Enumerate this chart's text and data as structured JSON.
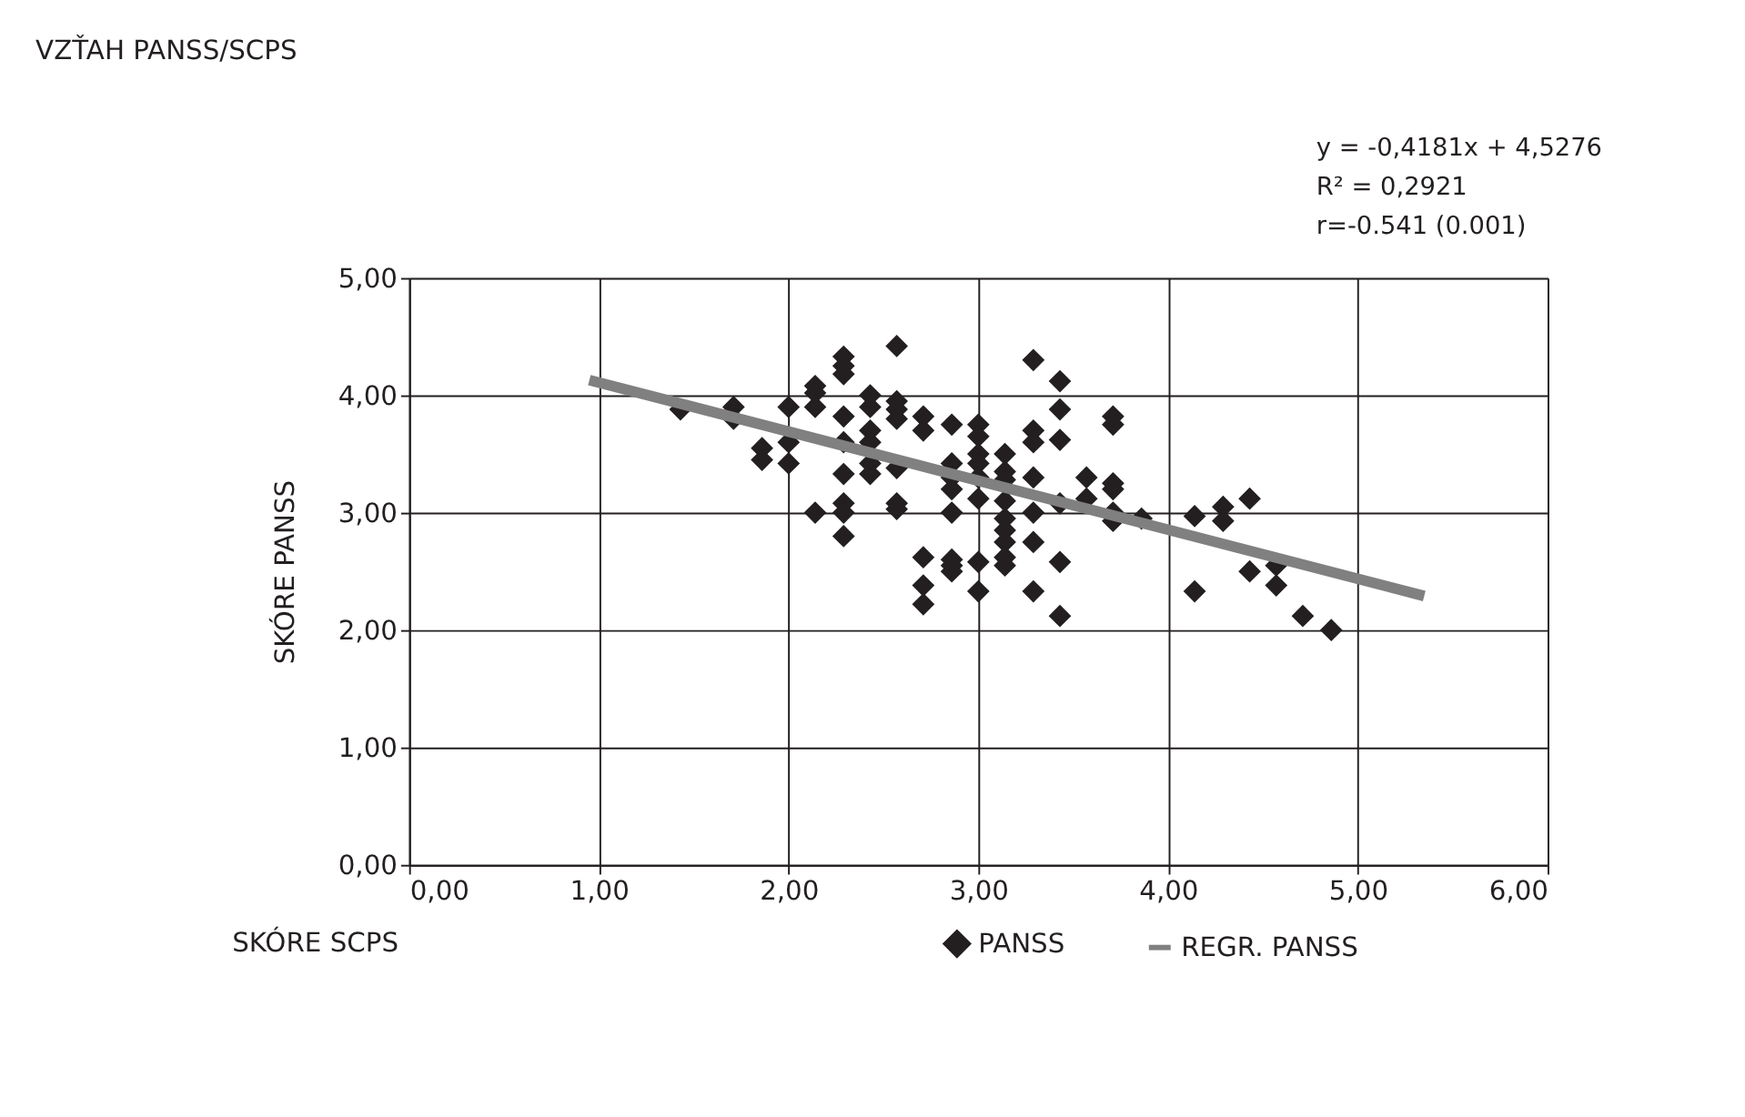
{
  "chart_data": {
    "type": "scatter",
    "title": "VZŤAH PANSS/SCPS",
    "xlabel": "SKÓRE SCPS",
    "ylabel": "SKÓRE PANSS",
    "annotations": [
      "y = -0,4181x + 4,5276",
      "R² = 0,2921",
      "r=-0.541 (0.001)"
    ],
    "series": [
      {
        "name": "PANSS",
        "type": "scatter",
        "color": "#231f20",
        "marker": "diamond",
        "x": [
          1.43,
          1.71,
          1.71,
          1.86,
          1.86,
          2.0,
          2.0,
          2.0,
          2.14,
          2.14,
          2.14,
          2.14,
          2.29,
          2.29,
          2.29,
          2.29,
          2.29,
          2.29,
          2.29,
          2.29,
          2.29,
          2.43,
          2.43,
          2.43,
          2.43,
          2.43,
          2.43,
          2.57,
          2.57,
          2.57,
          2.57,
          2.57,
          2.57,
          2.57,
          2.71,
          2.71,
          2.71,
          2.71,
          2.71,
          2.86,
          2.86,
          2.86,
          2.86,
          2.86,
          2.86,
          2.86,
          2.86,
          3.0,
          3.0,
          3.0,
          3.0,
          3.0,
          3.0,
          3.0,
          3.0,
          3.14,
          3.14,
          3.14,
          3.14,
          3.14,
          3.14,
          3.14,
          3.14,
          3.14,
          3.29,
          3.29,
          3.29,
          3.29,
          3.29,
          3.29,
          3.29,
          3.43,
          3.43,
          3.43,
          3.43,
          3.43,
          3.43,
          3.57,
          3.57,
          3.71,
          3.71,
          3.71,
          3.71,
          3.71,
          3.71,
          3.86,
          4.14,
          4.14,
          4.29,
          4.29,
          4.43,
          4.43,
          4.57,
          4.57,
          4.71,
          4.86
        ],
        "values": [
          3.88,
          3.9,
          3.8,
          3.55,
          3.45,
          3.9,
          3.6,
          3.42,
          4.08,
          4.02,
          3.9,
          3.0,
          4.33,
          4.25,
          4.18,
          3.82,
          3.6,
          3.33,
          3.08,
          3.0,
          2.8,
          4.0,
          3.9,
          3.7,
          3.6,
          3.42,
          3.33,
          4.42,
          3.95,
          3.88,
          3.8,
          3.38,
          3.08,
          3.03,
          3.82,
          3.7,
          2.62,
          2.38,
          2.22,
          3.75,
          3.42,
          3.3,
          3.2,
          3.0,
          2.6,
          2.55,
          2.5,
          3.75,
          3.65,
          3.5,
          3.42,
          3.3,
          3.12,
          2.58,
          2.33,
          3.5,
          3.35,
          3.28,
          3.1,
          2.95,
          2.85,
          2.75,
          2.62,
          2.55,
          4.3,
          3.7,
          3.6,
          3.3,
          3.0,
          2.75,
          2.33,
          4.12,
          3.88,
          3.62,
          3.08,
          2.58,
          2.12,
          3.3,
          3.12,
          3.82,
          3.75,
          3.25,
          3.2,
          3.0,
          2.93,
          2.95,
          2.97,
          2.33,
          3.05,
          2.93,
          3.12,
          2.5,
          2.55,
          2.38,
          2.12,
          2.0
        ]
      },
      {
        "name": "REGR. PANSS",
        "type": "line",
        "color": "#808080",
        "marker": "none",
        "line_style": "solid",
        "x": [
          0.95,
          5.35
        ],
        "values": [
          4.13,
          2.29
        ]
      }
    ],
    "xlim": [
      0,
      6
    ],
    "ylim": [
      0,
      5
    ],
    "xticks": [
      {
        "value": 0,
        "label": "0,00"
      },
      {
        "value": 1,
        "label": "1,00"
      },
      {
        "value": 2,
        "label": "2,00"
      },
      {
        "value": 3,
        "label": "3,00"
      },
      {
        "value": 4,
        "label": "4,00"
      },
      {
        "value": 5,
        "label": "5,00"
      },
      {
        "value": 6,
        "label": "6,00"
      }
    ],
    "yticks": [
      {
        "value": 0,
        "label": "0,00"
      },
      {
        "value": 1,
        "label": "1,00"
      },
      {
        "value": 2,
        "label": "2,00"
      },
      {
        "value": 3,
        "label": "3,00"
      },
      {
        "value": 4,
        "label": "4,00"
      },
      {
        "value": 5,
        "label": "5,00"
      }
    ],
    "grid": true,
    "legend": "bottom"
  }
}
